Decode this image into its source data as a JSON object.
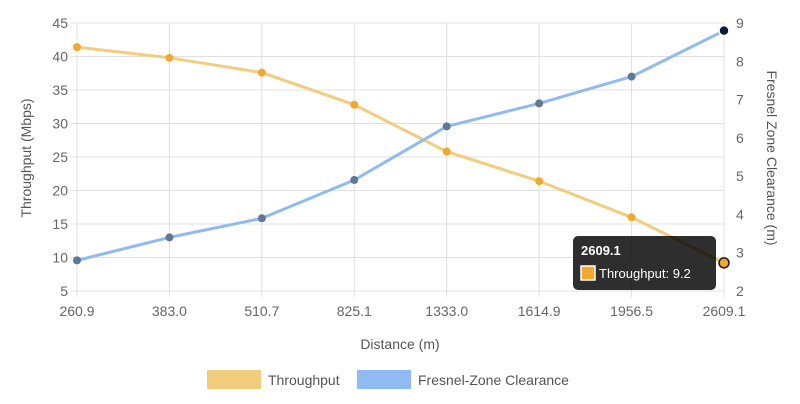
{
  "chart_data": {
    "type": "line",
    "x": [
      "260.9",
      "383.0",
      "510.7",
      "825.1",
      "1333.0",
      "1614.9",
      "1956.5",
      "2609.1"
    ],
    "xlabel": "Distance (m)",
    "y_left": {
      "label": "Throughput (Mbps)",
      "range": [
        5,
        45
      ],
      "ticks": [
        5,
        10,
        15,
        20,
        25,
        30,
        35,
        40,
        45
      ]
    },
    "y_right": {
      "label": "Fresnel Zone Clearance (m)",
      "range": [
        2,
        9
      ],
      "ticks": [
        2,
        3,
        4,
        5,
        6,
        7,
        8,
        9
      ]
    },
    "grid": true,
    "legend_position": "bottom",
    "series": [
      {
        "name": "Throughput",
        "axis": "left",
        "color": "#f2cd7e",
        "marker": "#f0a830",
        "values": [
          41.4,
          39.8,
          37.6,
          32.8,
          25.8,
          21.4,
          16.0,
          9.2
        ]
      },
      {
        "name": "Fresnel-Zone Clearance",
        "axis": "right",
        "color": "#8fbaf3",
        "marker": "#5f7896",
        "values": [
          2.8,
          3.4,
          3.9,
          4.9,
          6.3,
          6.9,
          7.6,
          8.8
        ]
      }
    ],
    "tooltip": {
      "title": "2609.1",
      "label": "Throughput: 9.2",
      "series": 0,
      "index": 7
    }
  }
}
